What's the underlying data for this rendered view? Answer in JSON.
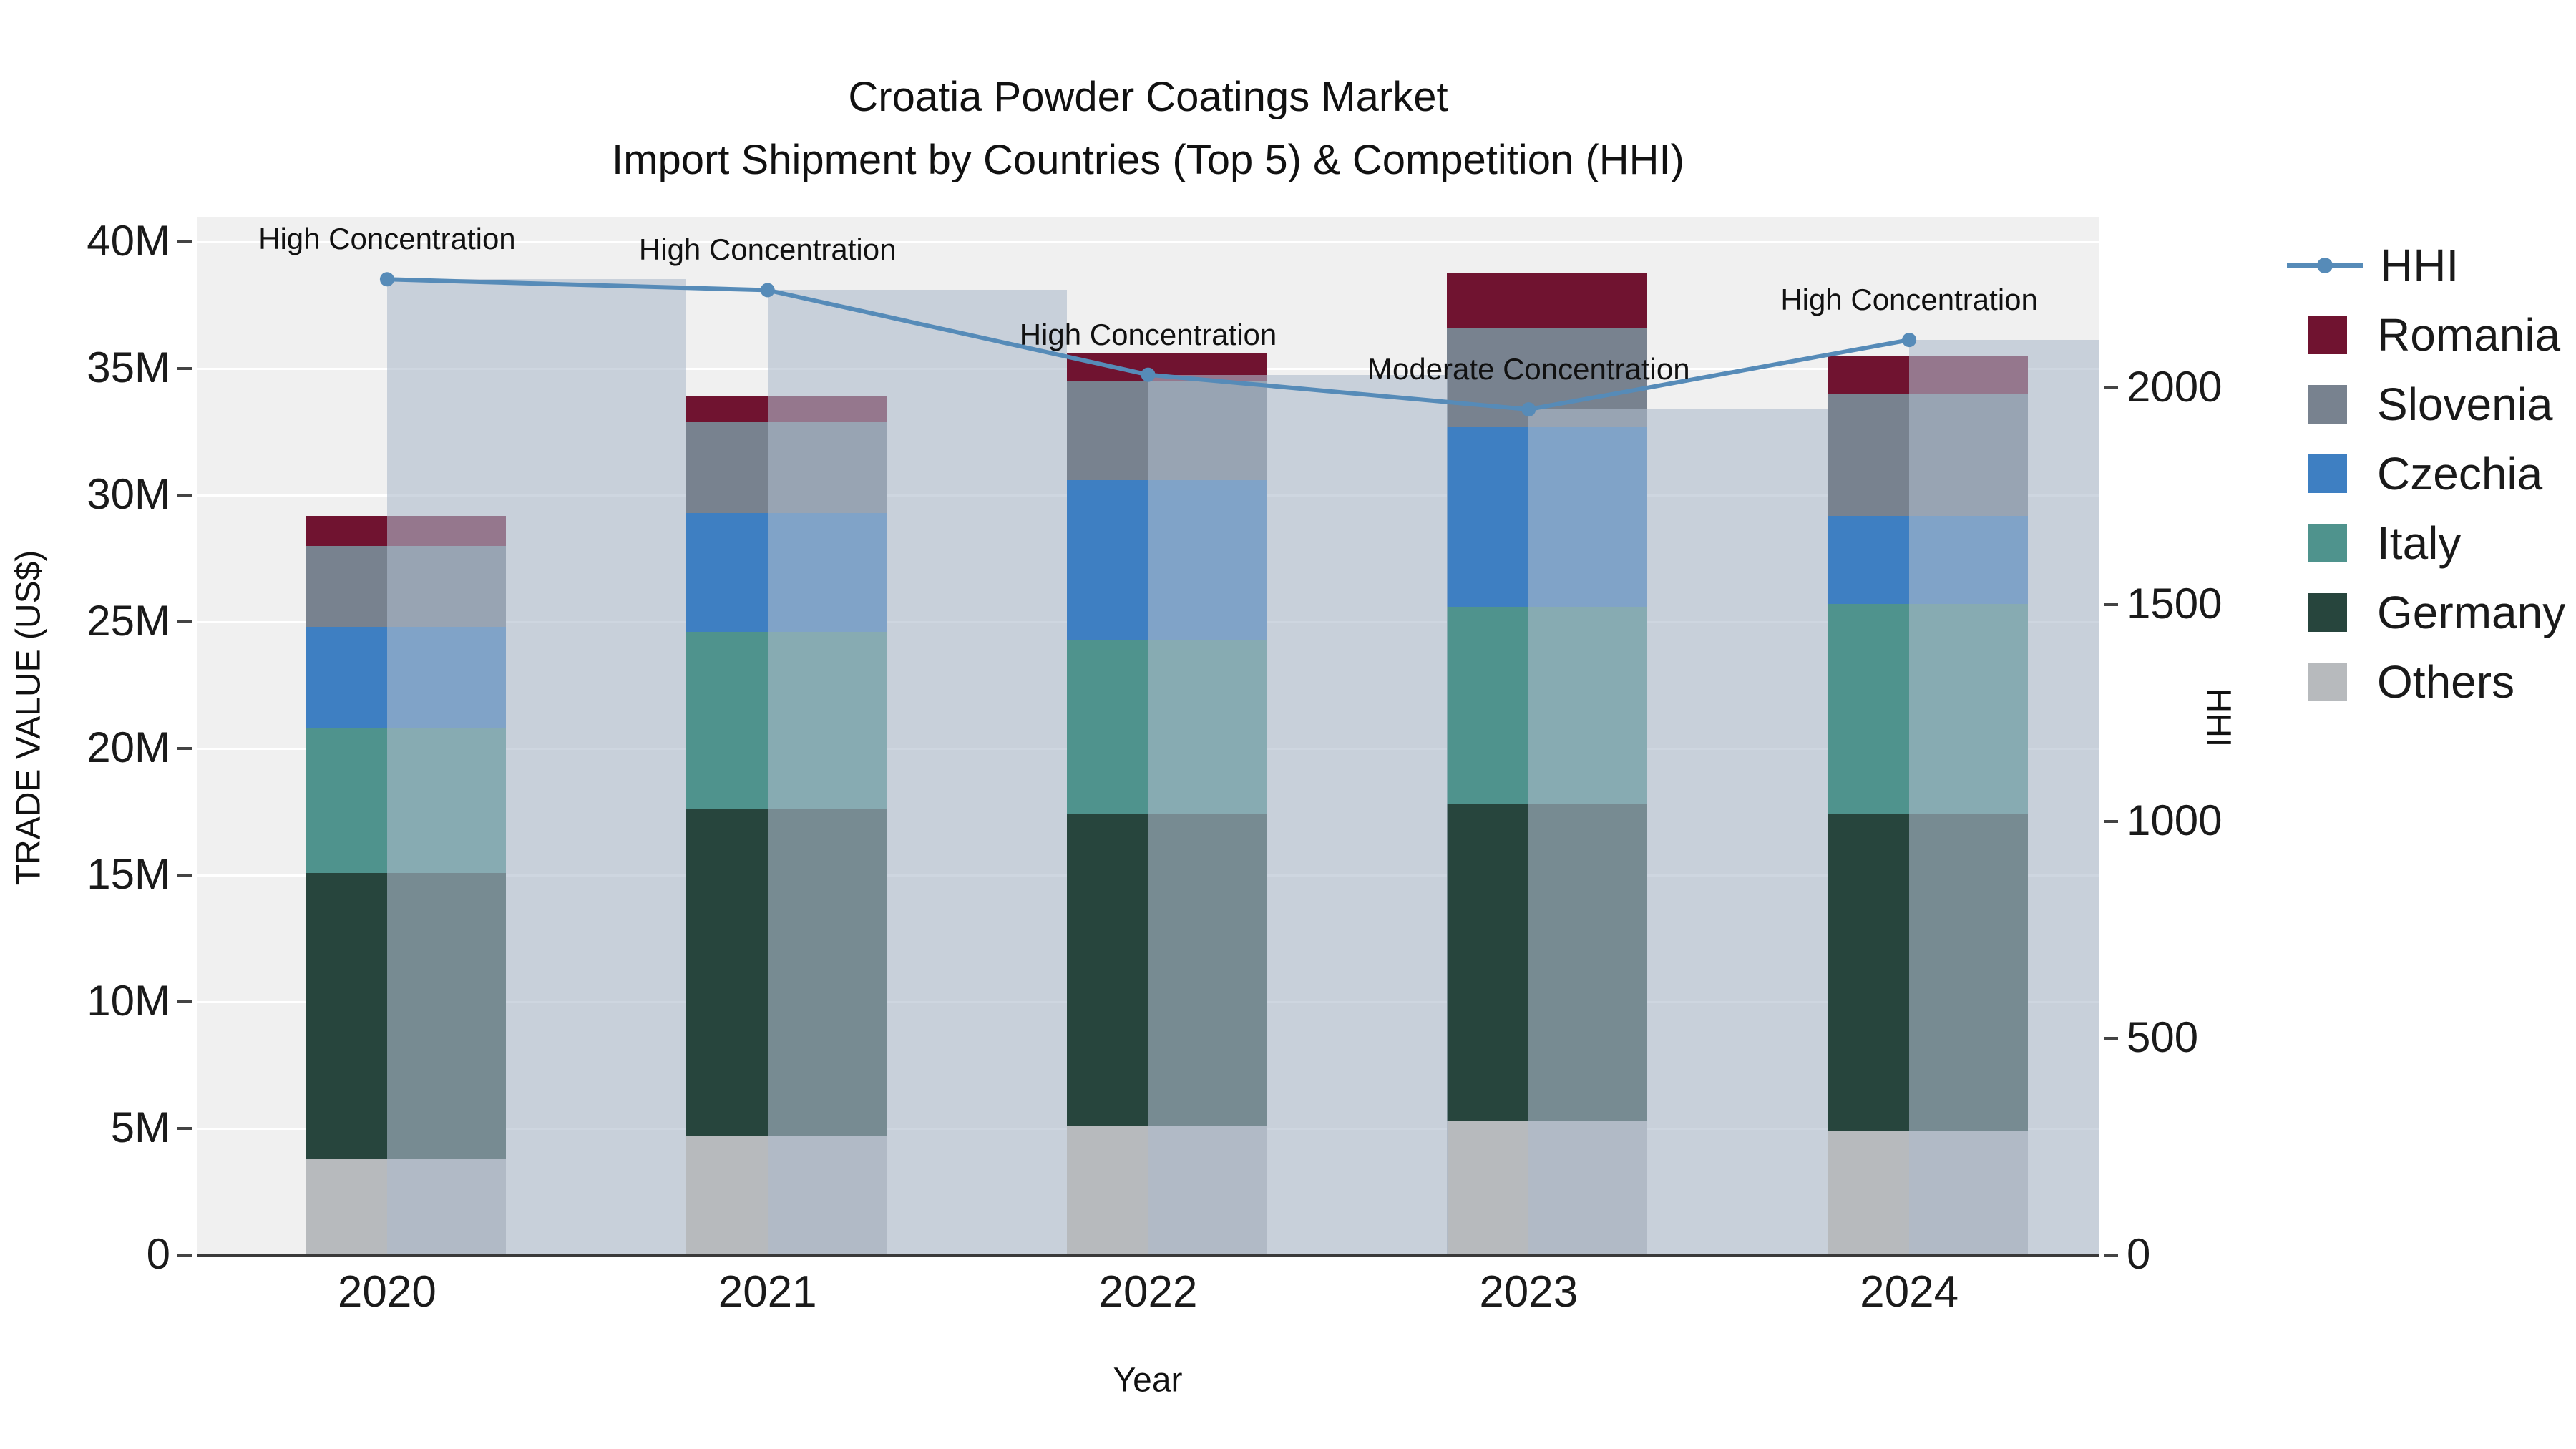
{
  "title": {
    "line1": "Croatia Powder Coatings Market",
    "line2": "Import Shipment by Countries (Top 5) & Competition (HHI)"
  },
  "axes": {
    "y_left": {
      "title": "TRADE VALUE (US$)",
      "ticks": [
        {
          "label": "0",
          "value": 0
        },
        {
          "label": "5M",
          "value": 5
        },
        {
          "label": "10M",
          "value": 10
        },
        {
          "label": "15M",
          "value": 15
        },
        {
          "label": "20M",
          "value": 20
        },
        {
          "label": "25M",
          "value": 25
        },
        {
          "label": "30M",
          "value": 30
        },
        {
          "label": "35M",
          "value": 35
        },
        {
          "label": "40M",
          "value": 40
        }
      ]
    },
    "y_right": {
      "title": "HHI",
      "ticks": [
        {
          "label": "0",
          "value": 0
        },
        {
          "label": "500",
          "value": 500
        },
        {
          "label": "1000",
          "value": 1000
        },
        {
          "label": "1500",
          "value": 1500
        },
        {
          "label": "2000",
          "value": 2000
        }
      ]
    },
    "x": {
      "title": "Year"
    }
  },
  "legend": [
    {
      "label": "HHI",
      "type": "line",
      "color": "#568bb8"
    },
    {
      "label": "Romania",
      "type": "square",
      "color": "#701330"
    },
    {
      "label": "Slovenia",
      "type": "square",
      "color": "#78828f"
    },
    {
      "label": "Czechia",
      "type": "square",
      "color": "#3e7fc2"
    },
    {
      "label": "Italy",
      "type": "square",
      "color": "#4f938d"
    },
    {
      "label": "Germany",
      "type": "square",
      "color": "#27453d"
    },
    {
      "label": "Others",
      "type": "square",
      "color": "#b7babd"
    }
  ],
  "chart_data": {
    "type": "stacked-bar+line",
    "title": "Croatia Powder Coatings Market — Import Shipment by Countries (Top 5) & Competition (HHI)",
    "categories": [
      "2020",
      "2021",
      "2022",
      "2023",
      "2024"
    ],
    "unit": "million US$",
    "series": [
      {
        "name": "Others",
        "color": "#b7babd",
        "values": [
          3.8,
          4.7,
          5.1,
          5.3,
          4.9
        ]
      },
      {
        "name": "Germany",
        "color": "#27453d",
        "values": [
          11.3,
          12.9,
          12.3,
          12.5,
          12.5
        ]
      },
      {
        "name": "Italy",
        "color": "#4f938d",
        "values": [
          5.7,
          7.0,
          6.9,
          7.8,
          8.3
        ]
      },
      {
        "name": "Czechia",
        "color": "#3e7fc2",
        "values": [
          4.0,
          4.7,
          6.3,
          7.1,
          3.5
        ]
      },
      {
        "name": "Slovenia",
        "color": "#78828f",
        "values": [
          3.2,
          3.6,
          3.9,
          3.9,
          4.8
        ]
      },
      {
        "name": "Romania",
        "color": "#701330",
        "values": [
          1.2,
          1.0,
          1.1,
          2.2,
          1.5
        ]
      }
    ],
    "totals_musd": [
      29.2,
      33.9,
      35.6,
      38.8,
      35.5
    ],
    "hhi": {
      "name": "HHI",
      "color": "#568bb8",
      "band_color": "rgba(173,186,204,0.6)",
      "values": [
        2250,
        2225,
        2030,
        1950,
        2110
      ]
    },
    "annotations": [
      "High Concentration",
      "High Concentration",
      "High Concentration",
      "Moderate Concentration",
      "High Concentration"
    ],
    "xlabel": "Year",
    "ylabel_left": "TRADE VALUE (US$)",
    "ylabel_right": "HHI",
    "y_left_axis_max": 41,
    "y_right_axis_max": 2394,
    "grid": true,
    "legend_position": "right"
  }
}
